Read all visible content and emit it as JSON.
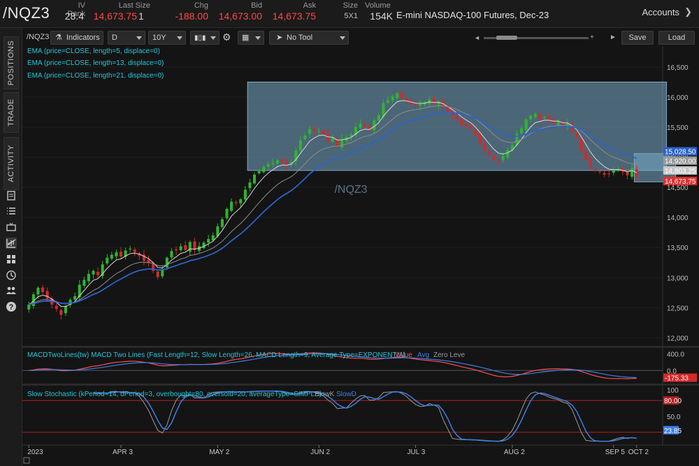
{
  "header": {
    "symbol": "/NQZ3",
    "fields": [
      {
        "label": "IV Rank",
        "value": "28.4"
      },
      {
        "label": "Last Size",
        "value": "14,673.75",
        "extra": "1"
      },
      {
        "label": "Chg",
        "value": "-188.00"
      },
      {
        "label": "Bid",
        "value": "14,673.00"
      },
      {
        "label": "Ask",
        "value": "14,673.75"
      },
      {
        "label": "Size",
        "value": "5X1"
      },
      {
        "label": "Volume",
        "value": "154K"
      }
    ],
    "description": "E-mini NASDAQ-100 Futures, Dec-23",
    "accounts_label": "Accounts"
  },
  "rail": {
    "tabs": [
      "POSITIONS",
      "TRADE",
      "ACTIVITY"
    ],
    "icons": [
      "notes-icon",
      "list-icon",
      "monitor-icon",
      "chart-icon",
      "grid-icon",
      "clock-icon",
      "people-icon",
      "help-icon"
    ]
  },
  "toolbar": {
    "symbol": "/NQZ3",
    "studies_label": "Indicators",
    "aggregation": "D",
    "period": "10Y",
    "drawing_tool": "No Tool",
    "save_label": "Save",
    "load_label": "Load"
  },
  "chart_data": [
    {
      "type": "candlestick",
      "watermark": "/NQZ3",
      "studies": [
        "EMA (price=CLOSE, length=5, displace=0)",
        "EMA (price=CLOSE, length=13, displace=0)",
        "EMA (price=CLOSE, length=21, displace=0)"
      ],
      "y_ticks": [
        "16,500",
        "16,000",
        "15,500",
        "15,000",
        "14,500",
        "14,000",
        "13,500",
        "13,000",
        "12,500",
        "12,000"
      ],
      "ylim": [
        11,
        900,
        16,
        800
      ],
      "price_labels": [
        {
          "text": "15,028.50",
          "value": 15028.5,
          "color": "#2b63c9"
        },
        {
          "text": "14,920.00",
          "value": 14920,
          "color": "#9a9a9a"
        },
        {
          "text": "14,803.25",
          "value": 14803.25,
          "color": "#c8c8c8"
        },
        {
          "text": "14,673.75",
          "value": 14673.75,
          "color": "#e03030"
        }
      ],
      "x_labels": [
        "2023",
        "APR 3",
        "MAY 2",
        "JUN 2",
        "JUL 3",
        "AUG 2",
        "SEP 5",
        "OCT 2"
      ],
      "boxes": [
        {
          "x0": 48,
          "x1": 138,
          "y0": 14780,
          "y1": 16250
        },
        {
          "x0": 132,
          "x1": 140,
          "y0": 14590,
          "y1": 15060
        }
      ],
      "closes": [
        12550,
        12720,
        12830,
        12760,
        12650,
        12550,
        12480,
        12380,
        12520,
        12630,
        12690,
        12880,
        12960,
        13060,
        13110,
        13040,
        13220,
        13330,
        13380,
        13420,
        13350,
        13450,
        13480,
        13420,
        13360,
        13280,
        13240,
        13110,
        13010,
        13140,
        13330,
        13440,
        13450,
        13520,
        13460,
        13590,
        13460,
        13520,
        13580,
        13640,
        13700,
        13850,
        13970,
        14140,
        14260,
        14240,
        14300,
        14460,
        14580,
        14710,
        14770,
        14840,
        14880,
        14900,
        14950,
        14920,
        14860,
        14920,
        15110,
        15280,
        15360,
        15470,
        15430,
        15440,
        15380,
        15280,
        15320,
        15190,
        15300,
        15330,
        15380,
        15500,
        15560,
        15510,
        15450,
        15610,
        15700,
        15900,
        15950,
        16010,
        16060,
        15980,
        15930,
        15880,
        15860,
        15880,
        15910,
        15960,
        15890,
        15920,
        15840,
        15740,
        15690,
        15630,
        15530,
        15520,
        15480,
        15360,
        15230,
        15120,
        15040,
        14950,
        14940,
        15020,
        15120,
        15200,
        15390,
        15480,
        15630,
        15690,
        15720,
        15630,
        15660,
        15610,
        15570,
        15600,
        15520,
        15560,
        15440,
        15320,
        15100,
        14960,
        14830,
        14780,
        14760,
        14710,
        14720,
        14780,
        14800,
        14760,
        14700,
        14820,
        14673.75
      ]
    },
    {
      "type": "line",
      "title": "MACDTwoLines(tw) MACD Two Lines (Fast Length=12, Slow Length=26, MACD Length=9, Average Type=EXPONENTIAL",
      "legend": [
        "Value",
        "Avg",
        "Zero Leve"
      ],
      "y_ticks": [
        "400.0",
        "0.0"
      ],
      "ylim": [
        -300,
        480
      ],
      "value_labels": [
        "-175.33"
      ]
    },
    {
      "type": "line",
      "title": "Slow Stochastic (kPeriod=14, dPeriod=3, overbought=80, oversold=20, averageType=SIMPLE)",
      "legend": [
        "SlowK",
        "SlowD"
      ],
      "y_ticks": [
        "100",
        "50.0"
      ],
      "ylim": [
        0,
        100
      ],
      "overbought": 80,
      "oversold": 20,
      "value_labels": [
        "80.00",
        "23.85"
      ]
    }
  ]
}
